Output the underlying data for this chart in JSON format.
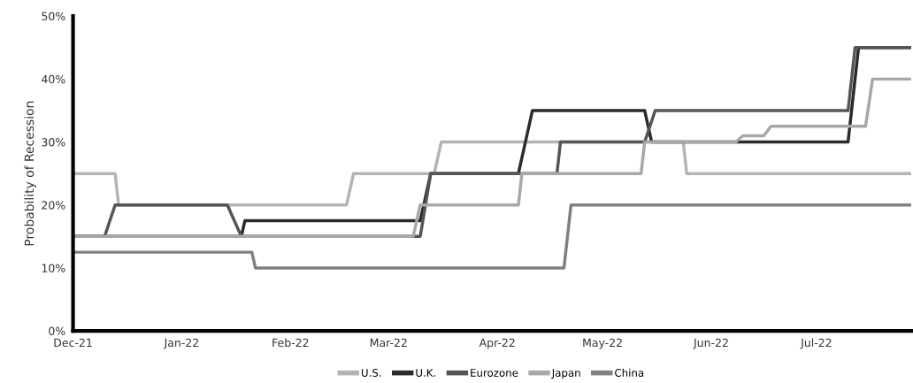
{
  "chart_data": {
    "type": "line",
    "ylabel": "Probability of Recession",
    "xlim": [
      "2021-12-01",
      "2022-07-28"
    ],
    "xticks": [
      {
        "value": "2021-12-01",
        "label": "Dec-21"
      },
      {
        "value": "2022-01-01",
        "label": "Jan-22"
      },
      {
        "value": "2022-02-01",
        "label": "Feb-22"
      },
      {
        "value": "2022-03-01",
        "label": "Mar-22"
      },
      {
        "value": "2022-04-01",
        "label": "Apr-22"
      },
      {
        "value": "2022-05-01",
        "label": "May-22"
      },
      {
        "value": "2022-06-01",
        "label": "Jun-22"
      },
      {
        "value": "2022-07-01",
        "label": "Jul-22"
      }
    ],
    "ylim": [
      0,
      50
    ],
    "yticks": [
      {
        "value": 0,
        "label": "0%"
      },
      {
        "value": 10,
        "label": "10%"
      },
      {
        "value": 20,
        "label": "20%"
      },
      {
        "value": 30,
        "label": "30%"
      },
      {
        "value": 40,
        "label": "40%"
      },
      {
        "value": 50,
        "label": "50%"
      }
    ],
    "grid": false,
    "legend": "bottom",
    "series": [
      {
        "name": "U.S.",
        "color": "#b4b4b4",
        "x": [
          "2021-12-01",
          "2021-12-13",
          "2021-12-14",
          "2022-02-17",
          "2022-02-19",
          "2022-03-14",
          "2022-03-16",
          "2022-05-24",
          "2022-05-25",
          "2022-07-28"
        ],
        "values": [
          25,
          25,
          20,
          20,
          25,
          25,
          30,
          30,
          25,
          25
        ]
      },
      {
        "name": "U.K.",
        "color": "#2a2a2a",
        "x": [
          "2021-12-01",
          "2022-01-18",
          "2022-01-19",
          "2022-03-10",
          "2022-03-13",
          "2022-04-07",
          "2022-04-11",
          "2022-05-13",
          "2022-05-15",
          "2022-07-10",
          "2022-07-13",
          "2022-07-28"
        ],
        "values": [
          15,
          15,
          17.5,
          17.5,
          25,
          25,
          35,
          35,
          30,
          30,
          45,
          45
        ]
      },
      {
        "name": "Eurozone",
        "color": "#555555",
        "x": [
          "2021-12-01",
          "2021-12-10",
          "2021-12-13",
          "2022-01-14",
          "2022-01-18",
          "2022-03-10",
          "2022-03-13",
          "2022-04-18",
          "2022-04-19",
          "2022-05-13",
          "2022-05-16",
          "2022-07-10",
          "2022-07-12",
          "2022-07-28"
        ],
        "values": [
          15,
          15,
          20,
          20,
          15,
          15,
          25,
          25,
          30,
          30,
          35,
          35,
          45,
          45
        ]
      },
      {
        "name": "Japan",
        "color": "#a8a8a8",
        "x": [
          "2021-12-01",
          "2022-03-08",
          "2022-03-10",
          "2022-04-07",
          "2022-04-08",
          "2022-05-12",
          "2022-05-13",
          "2022-06-08",
          "2022-06-10",
          "2022-06-16",
          "2022-06-18",
          "2022-07-15",
          "2022-07-17",
          "2022-07-28"
        ],
        "values": [
          15,
          15,
          20,
          20,
          25,
          25,
          30,
          30,
          31,
          31,
          32.5,
          32.5,
          40,
          40
        ]
      },
      {
        "name": "China",
        "color": "#808080",
        "x": [
          "2021-12-01",
          "2022-01-21",
          "2022-01-22",
          "2022-04-20",
          "2022-04-22",
          "2022-07-28"
        ],
        "values": [
          12.5,
          12.5,
          10,
          10,
          20,
          20
        ]
      }
    ]
  }
}
